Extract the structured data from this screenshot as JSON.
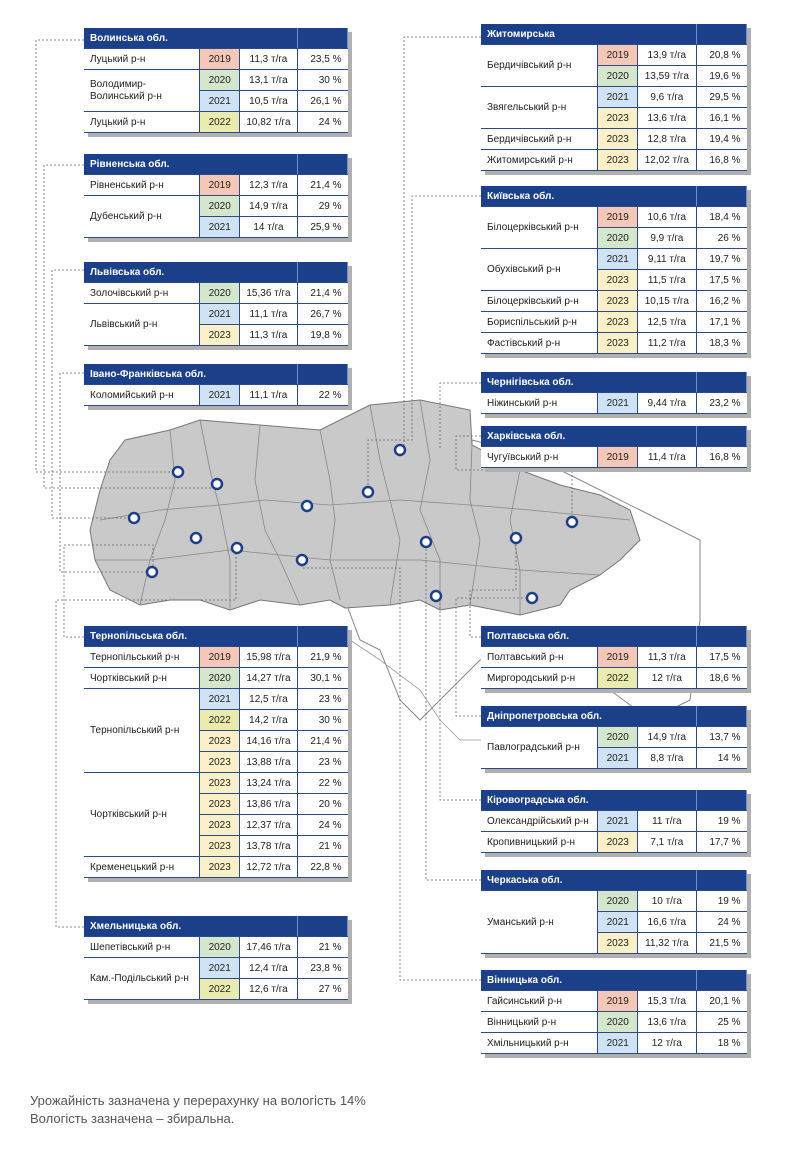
{
  "year_colors": {
    "2019": "#f4c7b7",
    "2020": "#d4e6cc",
    "2021": "#cfe3f4",
    "2022": "#e9ecae",
    "2023": "#fbf0c7"
  },
  "panels": [
    {
      "id": "volyn",
      "region": "Волинська обл.",
      "rows": [
        {
          "rayon": "Луцький р-н",
          "year": "2019",
          "yield": "11,3 т/га",
          "humidity": "23,5 %"
        },
        {
          "rayon": "Володимир-Волинський р-н",
          "year": "2020",
          "yield": "13,1 т/га",
          "humidity": "30 %"
        },
        {
          "rayon": "",
          "year": "2021",
          "yield": "10,5 т/га",
          "humidity": "26,1 %"
        },
        {
          "rayon": "Луцький р-н",
          "year": "2022",
          "yield": "10,82 т/га",
          "humidity": "24 %"
        }
      ]
    },
    {
      "id": "rivne",
      "region": "Рівненська обл.",
      "rows": [
        {
          "rayon": "Рівненський р-н",
          "year": "2019",
          "yield": "12,3 т/га",
          "humidity": "21,4 %"
        },
        {
          "rayon": "Дубенський р-н",
          "year": "2020",
          "yield": "14,9 т/га",
          "humidity": "29 %"
        },
        {
          "rayon": "",
          "year": "2021",
          "yield": "14 т/га",
          "humidity": "25,9 %"
        }
      ]
    },
    {
      "id": "lviv",
      "region": "Львівська обл.",
      "rows": [
        {
          "rayon": "Золочівський р-н",
          "year": "2020",
          "yield": "15,36 т/га",
          "humidity": "21,4 %"
        },
        {
          "rayon": "Львівський р-н",
          "year": "2021",
          "yield": "11,1 т/га",
          "humidity": "26,7 %"
        },
        {
          "rayon": "",
          "year": "2023",
          "yield": "11,3 т/га",
          "humidity": "19,8 %"
        }
      ]
    },
    {
      "id": "ivano",
      "region": "Івано-Франківська обл.",
      "rows": [
        {
          "rayon": "Коломийський р-н",
          "year": "2021",
          "yield": "11,1 т/га",
          "humidity": "22 %"
        }
      ]
    },
    {
      "id": "ternopil",
      "region": "Тернопільська обл.",
      "rows": [
        {
          "rayon": "Тернопільський  р-н",
          "year": "2019",
          "yield": "15,98 т/га",
          "humidity": "21,9 %"
        },
        {
          "rayon": "Чортківський р-н",
          "year": "2020",
          "yield": "14,27 т/га",
          "humidity": "30,1 %"
        },
        {
          "rayon": "Тернопільський р-н",
          "year": "2021",
          "yield": "12,5 т/га",
          "humidity": "23 %"
        },
        {
          "rayon": "",
          "year": "2022",
          "yield": "14,2 т/га",
          "humidity": "30 %"
        },
        {
          "rayon": "",
          "year": "2023",
          "yield": "14,16 т/га",
          "humidity": "21,4 %"
        },
        {
          "rayon": "",
          "year": "2023",
          "yield": "13,88 т/га",
          "humidity": "23 %"
        },
        {
          "rayon": "Чортківський р-н",
          "year": "2023",
          "yield": "13,24 т/га",
          "humidity": "22 %"
        },
        {
          "rayon": "",
          "year": "2023",
          "yield": "13,86 т/га",
          "humidity": "20 %"
        },
        {
          "rayon": "",
          "year": "2023",
          "yield": "12,37 т/га",
          "humidity": "24 %"
        },
        {
          "rayon": "",
          "year": "2023",
          "yield": "13,78 т/га",
          "humidity": "21 %"
        },
        {
          "rayon": "Кременецький р-н",
          "year": "2023",
          "yield": "12,72 т/га",
          "humidity": "22,8 %"
        }
      ]
    },
    {
      "id": "khmelnytskyi",
      "region": "Хмельницька обл.",
      "rows": [
        {
          "rayon": "Шепетівський р-н",
          "year": "2020",
          "yield": "17,46 т/га",
          "humidity": "21 %"
        },
        {
          "rayon": "Кам.-Подільський р-н",
          "year": "2021",
          "yield": "12,4 т/га",
          "humidity": "23,8 %"
        },
        {
          "rayon": "",
          "year": "2022",
          "yield": "12,6 т/га",
          "humidity": "27 %"
        }
      ]
    },
    {
      "id": "zhytomyr",
      "region": "Житомирська",
      "rows": [
        {
          "rayon": "Бердичівський р-н",
          "year": "2019",
          "yield": "13,9 т/га",
          "humidity": "20,8 %"
        },
        {
          "rayon": "",
          "year": "2020",
          "yield": "13,59 т/га",
          "humidity": "19,6 %"
        },
        {
          "rayon": "Звягельський р-н",
          "year": "2021",
          "yield": "9,6 т/га",
          "humidity": "29,5 %"
        },
        {
          "rayon": "",
          "year": "2023",
          "yield": "13,6 т/га",
          "humidity": "16,1 %"
        },
        {
          "rayon": "Бердичівський р-н",
          "year": "2023",
          "yield": "12,8 т/га",
          "humidity": "19,4 %"
        },
        {
          "rayon": "Житомирський р-н",
          "year": "2023",
          "yield": "12,02 т/га",
          "humidity": "16,8 %"
        }
      ]
    },
    {
      "id": "kyiv",
      "region": "Київська обл.",
      "rows": [
        {
          "rayon": "Білоцерківський р-н",
          "year": "2019",
          "yield": "10,6 т/га",
          "humidity": "18,4 %"
        },
        {
          "rayon": "",
          "year": "2020",
          "yield": "9,9 т/га",
          "humidity": "26 %"
        },
        {
          "rayon": "Обухівський р-н",
          "year": "2021",
          "yield": "9,11 т/га",
          "humidity": "19,7 %"
        },
        {
          "rayon": "",
          "year": "2023",
          "yield": "11,5 т/га",
          "humidity": "17,5 %"
        },
        {
          "rayon": "Білоцерківський р-н",
          "year": "2023",
          "yield": "10,15 т/га",
          "humidity": "16,2 %"
        },
        {
          "rayon": "Бориспільський р-н",
          "year": "2023",
          "yield": "12,5 т/га",
          "humidity": "17,1 %"
        },
        {
          "rayon": "Фастівський р-н",
          "year": "2023",
          "yield": "11,2 т/га",
          "humidity": "18,3 %"
        }
      ]
    },
    {
      "id": "chernihiv",
      "region": "Чернігівська обл.",
      "rows": [
        {
          "rayon": "Ніжинський р-н",
          "year": "2021",
          "yield": "9,44 т/га",
          "humidity": "23,2 %"
        }
      ]
    },
    {
      "id": "kharkiv",
      "region": "Харківська обл.",
      "rows": [
        {
          "rayon": "Чугуївський р-н",
          "year": "2019",
          "yield": "11,4 т/га",
          "humidity": "16,8 %"
        }
      ]
    },
    {
      "id": "poltava",
      "region": "Полтавська обл.",
      "rows": [
        {
          "rayon": "Полтавський р-н",
          "year": "2019",
          "yield": "11,3 т/га",
          "humidity": "17,5 %"
        },
        {
          "rayon": "Миргородський р-н",
          "year": "2022",
          "yield": "12 т/га",
          "humidity": "18,6 %"
        }
      ]
    },
    {
      "id": "dnipro",
      "region": "Дніпропетровська обл.",
      "rows": [
        {
          "rayon": "Павлоградський р-н",
          "year": "2020",
          "yield": "14,9 т/га",
          "humidity": "13,7 %"
        },
        {
          "rayon": "",
          "year": "2021",
          "yield": "8,8 т/га",
          "humidity": "14 %"
        }
      ]
    },
    {
      "id": "kirovohrad",
      "region": "Кіровоградська обл.",
      "rows": [
        {
          "rayon": "Олександрійський р-н",
          "year": "2021",
          "yield": "11 т/га",
          "humidity": "19 %"
        },
        {
          "rayon": "Кропивницький р-н",
          "year": "2023",
          "yield": "7,1 т/га",
          "humidity": "17,7 %"
        }
      ]
    },
    {
      "id": "cherkasy",
      "region": "Черкаська обл.",
      "rows": [
        {
          "rayon": "Уманський р-н",
          "year": "2020",
          "yield": "10 т/га",
          "humidity": "19 %"
        },
        {
          "rayon": "",
          "year": "2021",
          "yield": "16,6 т/га",
          "humidity": "24 %"
        },
        {
          "rayon": "",
          "year": "2023",
          "yield": "11,32 т/га",
          "humidity": "21,5 %"
        }
      ]
    },
    {
      "id": "vinnytsia",
      "region": "Вінницька обл.",
      "rows": [
        {
          "rayon": "Гайсинський р-н",
          "year": "2019",
          "yield": "15,3 т/га",
          "humidity": "20,1 %"
        },
        {
          "rayon": "Вінницький р-н",
          "year": "2020",
          "yield": "13,6 т/га",
          "humidity": "25 %"
        },
        {
          "rayon": "Хмільницький р-н",
          "year": "2021",
          "yield": "12 т/га",
          "humidity": "18 %"
        }
      ]
    }
  ],
  "footnote": {
    "line1": "Урожайність зазначена у перерахунку на вологість 14%",
    "line2": "Вологість зазначена – збиральна."
  }
}
